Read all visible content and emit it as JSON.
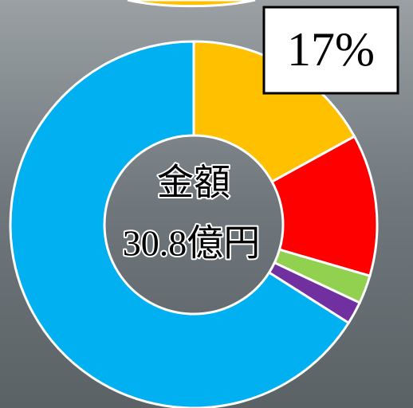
{
  "chart_data": {
    "type": "donut",
    "values": [
      17,
      12.5,
      2.5,
      2,
      66
    ],
    "value_labels": [
      "17%",
      null,
      null,
      null,
      null
    ],
    "colors": [
      "#ffc000",
      "#ff0000",
      "#92d050",
      "#7030a0",
      "#00b0f0"
    ],
    "center_label": [
      "金額",
      "30.8億円"
    ]
  }
}
